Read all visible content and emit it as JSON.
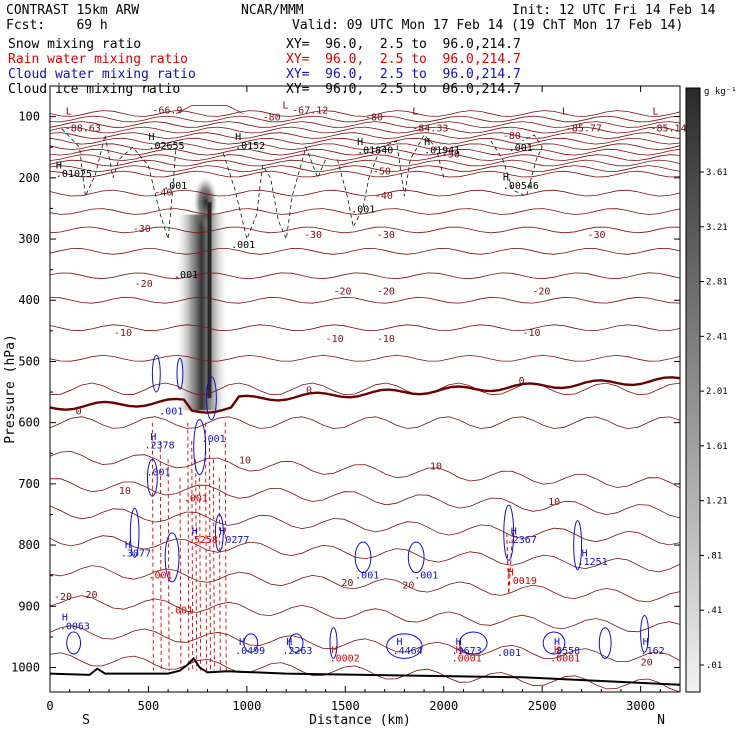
{
  "header": {
    "model": "CONTRAST 15km ARW",
    "org": "NCAR/MMM",
    "init": "Init: 12 UTC Fri 14 Feb 14",
    "fcst": "Fcst:    69 h",
    "valid": "Valid: 09 UTC Mon 17 Feb 14 (19 ChT Mon 17 Feb 14)",
    "fields": [
      {
        "name": "Snow mixing ratio",
        "color": "#000000",
        "xy": "XY=  96.0,  2.5 to  96.0,214.7"
      },
      {
        "name": "Rain water mixing ratio",
        "color": "#e00000",
        "xy": "XY=  96.0,  2.5 to  96.0,214.7"
      },
      {
        "name": "Cloud water mixing ratio",
        "color": "#1010c8",
        "xy": "XY=  96.0,  2.5 to  96.0,214.7"
      },
      {
        "name": "Cloud ice mixing ratio",
        "color": "#000000",
        "xy": "XY=  96.0,  2.5 to  96.0,214.7"
      }
    ]
  },
  "chart_data": {
    "type": "cross-section contour",
    "xlabel": "Distance (km)",
    "ylabel": "Pressure (hPa)",
    "xlim": [
      0,
      3200
    ],
    "ylim": [
      1040,
      50
    ],
    "x_ticks": [
      0,
      500,
      1000,
      1500,
      2000,
      2500,
      3000
    ],
    "y_ticks": [
      100,
      200,
      300,
      400,
      500,
      600,
      700,
      800,
      900,
      1000
    ],
    "x_end_labels": [
      "S",
      "N"
    ],
    "colorbar": {
      "unit": "g kg⁻¹",
      "ticks": [
        "3.61",
        "3.21",
        "2.81",
        "2.41",
        "2.01",
        "1.61",
        "1.21",
        ".81",
        ".41",
        ".01"
      ]
    },
    "isotherm_labels": [
      {
        "text": "-88.63",
        "x": 75,
        "p": 118
      },
      {
        "text": "-66.9",
        "x": 520,
        "p": 88
      },
      {
        "text": "-80",
        "x": 1080,
        "p": 100
      },
      {
        "text": "-67.12",
        "x": 1230,
        "p": 88
      },
      {
        "text": "-80",
        "x": 1600,
        "p": 100
      },
      {
        "text": "-84.33",
        "x": 1840,
        "p": 118
      },
      {
        "text": "-80",
        "x": 2300,
        "p": 130
      },
      {
        "text": "-85.77",
        "x": 2620,
        "p": 118
      },
      {
        "text": "-85.14",
        "x": 3050,
        "p": 118
      },
      {
        "text": "-50",
        "x": 1990,
        "p": 160
      },
      {
        "text": "-50",
        "x": 1640,
        "p": 188
      },
      {
        "text": "-40",
        "x": 530,
        "p": 222
      },
      {
        "text": "-40",
        "x": 1650,
        "p": 228
      },
      {
        "text": "-30",
        "x": 420,
        "p": 282
      },
      {
        "text": "-30",
        "x": 1290,
        "p": 292
      },
      {
        "text": "-30",
        "x": 1660,
        "p": 292
      },
      {
        "text": "-30",
        "x": 2730,
        "p": 292
      },
      {
        "text": "-20",
        "x": 430,
        "p": 372
      },
      {
        "text": "-20",
        "x": 1440,
        "p": 384
      },
      {
        "text": "-20",
        "x": 1660,
        "p": 384
      },
      {
        "text": "-20",
        "x": 2450,
        "p": 384
      },
      {
        "text": "-10",
        "x": 325,
        "p": 452
      },
      {
        "text": "-10",
        "x": 1400,
        "p": 462
      },
      {
        "text": "-10",
        "x": 1660,
        "p": 462
      },
      {
        "text": "-10",
        "x": 2400,
        "p": 452
      },
      {
        "text": "0",
        "x": 130,
        "p": 580
      },
      {
        "text": "0",
        "x": 1300,
        "p": 546
      },
      {
        "text": "0",
        "x": 2380,
        "p": 530
      },
      {
        "text": "10",
        "x": 960,
        "p": 660
      },
      {
        "text": "10",
        "x": 1930,
        "p": 670
      },
      {
        "text": "10",
        "x": 350,
        "p": 710
      },
      {
        "text": "10",
        "x": 2530,
        "p": 728
      },
      {
        "text": "20",
        "x": 180,
        "p": 880
      },
      {
        "text": "20",
        "x": 1480,
        "p": 860
      },
      {
        "text": "20",
        "x": 1790,
        "p": 864
      },
      {
        "text": "20",
        "x": 3000,
        "p": 990
      },
      {
        "text": "-20",
        "x": 20,
        "p": 883
      }
    ],
    "extrema_labels": [
      {
        "text": "L",
        "x": 80,
        "p": 90,
        "color": "#800000"
      },
      {
        "text": "L",
        "x": 1180,
        "p": 80,
        "color": "#800000"
      },
      {
        "text": "L",
        "x": 1840,
        "p": 90,
        "color": "#800000"
      },
      {
        "text": "L",
        "x": 2600,
        "p": 90,
        "color": "#800000"
      },
      {
        "text": "L",
        "x": 3060,
        "p": 90,
        "color": "#800000"
      },
      {
        "text": "H",
        "x": 500,
        "p": 132,
        "color": "#000000"
      },
      {
        "text": ".02655",
        "x": 500,
        "p": 146,
        "color": "#000000"
      },
      {
        "text": "H",
        "x": 940,
        "p": 132,
        "color": "#000000"
      },
      {
        "text": ".0152",
        "x": 940,
        "p": 146,
        "color": "#000000"
      },
      {
        "text": "H",
        "x": 1560,
        "p": 140,
        "color": "#000000"
      },
      {
        "text": ".01840",
        "x": 1560,
        "p": 154,
        "color": "#000000"
      },
      {
        "text": "H",
        "x": 1900,
        "p": 140,
        "color": "#000000"
      },
      {
        "text": ".01941",
        "x": 1900,
        "p": 154,
        "color": "#000000"
      },
      {
        "text": ".001",
        "x": 2330,
        "p": 150,
        "color": "#000000"
      },
      {
        "text": "H",
        "x": 30,
        "p": 178,
        "color": "#000000"
      },
      {
        "text": ".01025",
        "x": 30,
        "p": 192,
        "color": "#000000"
      },
      {
        "text": "H",
        "x": 2300,
        "p": 198,
        "color": "#000000"
      },
      {
        "text": ".00546",
        "x": 2300,
        "p": 212,
        "color": "#000000"
      },
      {
        "text": ".001",
        "x": 575,
        "p": 212,
        "color": "#000000"
      },
      {
        "text": ".001",
        "x": 1530,
        "p": 250,
        "color": "#000000"
      },
      {
        "text": ".001",
        "x": 920,
        "p": 308,
        "color": "#000000"
      },
      {
        "text": ".001",
        "x": 630,
        "p": 357,
        "color": "#000000"
      },
      {
        "text": ".001",
        "x": 555,
        "p": 580,
        "color": "#1010c8"
      },
      {
        "text": "H",
        "x": 510,
        "p": 622,
        "color": "#1010c8"
      },
      {
        "text": ".2378",
        "x": 480,
        "p": 636,
        "color": "#1010c8"
      },
      {
        "text": ".001",
        "x": 490,
        "p": 680,
        "color": "#1010c8"
      },
      {
        "text": ".001",
        "x": 770,
        "p": 625,
        "color": "#1010c8"
      },
      {
        "text": ".001",
        "x": 680,
        "p": 722,
        "color": "#e00000"
      },
      {
        "text": "H",
        "x": 720,
        "p": 776,
        "color": "#1010c8"
      },
      {
        "text": ".5258",
        "x": 700,
        "p": 790,
        "color": "#e00000"
      },
      {
        "text": "H",
        "x": 860,
        "p": 776,
        "color": "#1010c8"
      },
      {
        "text": ".0277",
        "x": 860,
        "p": 790,
        "color": "#1010c8"
      },
      {
        "text": "H",
        "x": 380,
        "p": 798,
        "color": "#1010c8"
      },
      {
        "text": ".3077",
        "x": 360,
        "p": 812,
        "color": "#1010c8"
      },
      {
        "text": ".001",
        "x": 500,
        "p": 848,
        "color": "#e00000"
      },
      {
        "text": ".001",
        "x": 605,
        "p": 905,
        "color": "#e00000"
      },
      {
        "text": "H",
        "x": 2340,
        "p": 776,
        "color": "#1010c8"
      },
      {
        "text": ".2367",
        "x": 2320,
        "p": 790,
        "color": "#1010c8"
      },
      {
        "text": "H",
        "x": 2700,
        "p": 812,
        "color": "#1010c8"
      },
      {
        "text": ".1251",
        "x": 2680,
        "p": 826,
        "color": "#1010c8"
      },
      {
        "text": "H",
        "x": 2325,
        "p": 843,
        "color": "#e00000"
      },
      {
        "text": ".0019",
        "x": 2320,
        "p": 857,
        "color": "#e00000"
      },
      {
        "text": ".001",
        "x": 1550,
        "p": 848,
        "color": "#1010c8"
      },
      {
        "text": ".001",
        "x": 1850,
        "p": 848,
        "color": "#1010c8"
      },
      {
        "text": "H",
        "x": 60,
        "p": 917,
        "color": "#1010c8"
      },
      {
        "text": ".0063",
        "x": 50,
        "p": 931,
        "color": "#1010c8"
      },
      {
        "text": "H",
        "x": 960,
        "p": 957,
        "color": "#1010c8"
      },
      {
        "text": ".0499",
        "x": 940,
        "p": 971,
        "color": "#1010c8"
      },
      {
        "text": "H",
        "x": 1200,
        "p": 957,
        "color": "#1010c8"
      },
      {
        "text": ".2263",
        "x": 1180,
        "p": 971,
        "color": "#1010c8"
      },
      {
        "text": "H",
        "x": 1430,
        "p": 970,
        "color": "#e00000"
      },
      {
        "text": ".0002",
        "x": 1420,
        "p": 984,
        "color": "#e00000"
      },
      {
        "text": "H",
        "x": 1760,
        "p": 957,
        "color": "#1010c8"
      },
      {
        "text": ".4464",
        "x": 1740,
        "p": 971,
        "color": "#1010c8"
      },
      {
        "text": "H",
        "x": 2060,
        "p": 957,
        "color": "#1010c8"
      },
      {
        "text": ".9673",
        "x": 2040,
        "p": 971,
        "color": "#1010c8"
      },
      {
        "text": "H",
        "x": 2060,
        "p": 970,
        "color": "#e00000"
      },
      {
        "text": ".0001",
        "x": 2040,
        "p": 984,
        "color": "#e00000"
      },
      {
        "text": ".001",
        "x": 2270,
        "p": 975,
        "color": "#1010c8"
      },
      {
        "text": "H",
        "x": 2560,
        "p": 957,
        "color": "#1010c8"
      },
      {
        "text": ".8558",
        "x": 2540,
        "p": 971,
        "color": "#1010c8"
      },
      {
        "text": "H",
        "x": 2560,
        "p": 970,
        "color": "#e00000"
      },
      {
        "text": ".0001",
        "x": 2540,
        "p": 984,
        "color": "#e00000"
      },
      {
        "text": "H",
        "x": 3010,
        "p": 957,
        "color": "#1010c8"
      },
      {
        "text": ".162",
        "x": 3000,
        "p": 971,
        "color": "#1010c8"
      }
    ]
  }
}
